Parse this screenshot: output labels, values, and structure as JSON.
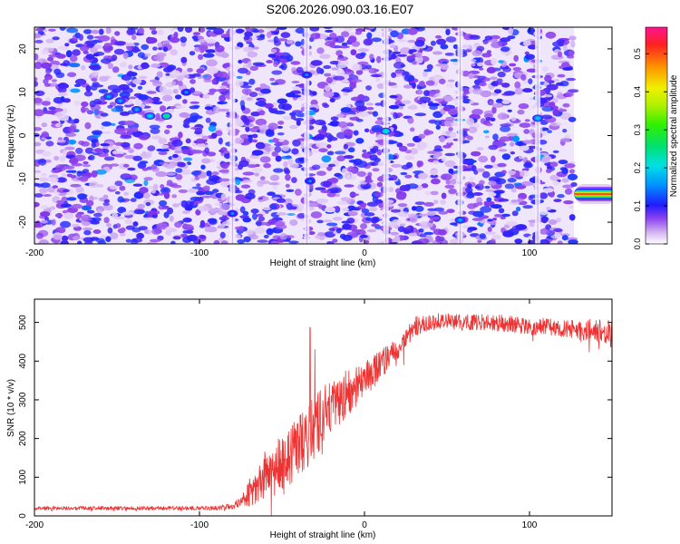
{
  "title": "S206.2026.090.03.16.E07",
  "chart_data": [
    {
      "type": "heatmap",
      "xlabel": "Height of straight line (km)",
      "ylabel": "Frequency (Hz)",
      "xlim": [
        -200,
        150
      ],
      "ylim": [
        -25,
        25
      ],
      "x_ticks": [
        -200,
        -100,
        0,
        100
      ],
      "x_tick_labels": [
        "-200",
        "-100",
        "0",
        "100"
      ],
      "y_ticks": [
        -20,
        -10,
        0,
        10,
        20
      ],
      "y_tick_labels": [
        "-20",
        "-10",
        "0",
        "10",
        "20"
      ],
      "colorbar": {
        "label": "Normalized spectral amplitude",
        "range": [
          0,
          0.57
        ],
        "ticks": [
          0.0,
          0.1,
          0.2,
          0.3,
          0.4,
          0.5
        ],
        "tick_labels": [
          "0.0",
          "0.1",
          "0.2",
          "0.3",
          "0.4",
          "0.5"
        ]
      },
      "vertical_stripes_km": [
        -80,
        -35,
        13,
        58,
        105
      ],
      "data_end_km": 127,
      "hotspots": [
        {
          "x": -155,
          "y": 9,
          "v": 0.12
        },
        {
          "x": -148,
          "y": 8,
          "v": 0.12
        },
        {
          "x": -138,
          "y": 6,
          "v": 0.12
        },
        {
          "x": -130,
          "y": 4.5,
          "v": 0.15
        },
        {
          "x": -120,
          "y": 4.5,
          "v": 0.22
        },
        {
          "x": -108,
          "y": 10,
          "v": 0.1
        },
        {
          "x": -80,
          "y": -18,
          "v": 0.1
        },
        {
          "x": -35,
          "y": 14,
          "v": 0.1
        },
        {
          "x": -33,
          "y": -10.5,
          "v": 0.1
        },
        {
          "x": 13,
          "y": 1,
          "v": 0.18
        },
        {
          "x": 58,
          "y": -19.5,
          "v": 0.12
        },
        {
          "x": 105,
          "y": 4,
          "v": 0.14
        }
      ],
      "line_feature": {
        "x_start": 127,
        "x_end": 150,
        "y": -13.5,
        "peak": 0.5
      }
    },
    {
      "type": "line",
      "xlabel": "Height of straight line (km)",
      "ylabel": "SNR (10 * v/v)",
      "xlim": [
        -200,
        150
      ],
      "ylim": [
        0,
        560
      ],
      "x_ticks": [
        -200,
        -100,
        0,
        100
      ],
      "x_tick_labels": [
        "-200",
        "-100",
        "0",
        "100"
      ],
      "y_ticks": [
        0,
        100,
        200,
        300,
        400,
        500
      ],
      "y_tick_labels": [
        "0",
        "100",
        "200",
        "300",
        "400",
        "500"
      ],
      "color": "#ee3333",
      "series": [
        {
          "name": "SNR",
          "x": [
            -200,
            -180,
            -160,
            -140,
            -120,
            -100,
            -90,
            -80,
            -75,
            -70,
            -65,
            -60,
            -55,
            -50,
            -45,
            -40,
            -35,
            -30,
            -25,
            -20,
            -15,
            -10,
            -5,
            0,
            5,
            10,
            15,
            20,
            25,
            30,
            40,
            50,
            60,
            70,
            80,
            90,
            100,
            110,
            120,
            130,
            140,
            150
          ],
          "values": [
            20,
            20,
            20,
            20,
            20,
            20,
            20,
            25,
            40,
            60,
            80,
            110,
            120,
            130,
            150,
            180,
            200,
            230,
            260,
            280,
            300,
            320,
            330,
            350,
            370,
            390,
            410,
            430,
            460,
            490,
            500,
            505,
            500,
            500,
            500,
            495,
            490,
            490,
            485,
            480,
            480,
            470
          ],
          "noise": [
            5,
            5,
            5,
            5,
            5,
            5,
            6,
            8,
            15,
            35,
            50,
            60,
            70,
            80,
            80,
            85,
            85,
            80,
            75,
            70,
            65,
            60,
            55,
            50,
            45,
            40,
            35,
            30,
            30,
            25,
            22,
            20,
            20,
            22,
            22,
            22,
            22,
            22,
            22,
            25,
            30,
            35
          ],
          "spikes": [
            {
              "x": -33,
              "y": 487
            },
            {
              "x": -30,
              "y": 430
            }
          ]
        }
      ]
    }
  ]
}
